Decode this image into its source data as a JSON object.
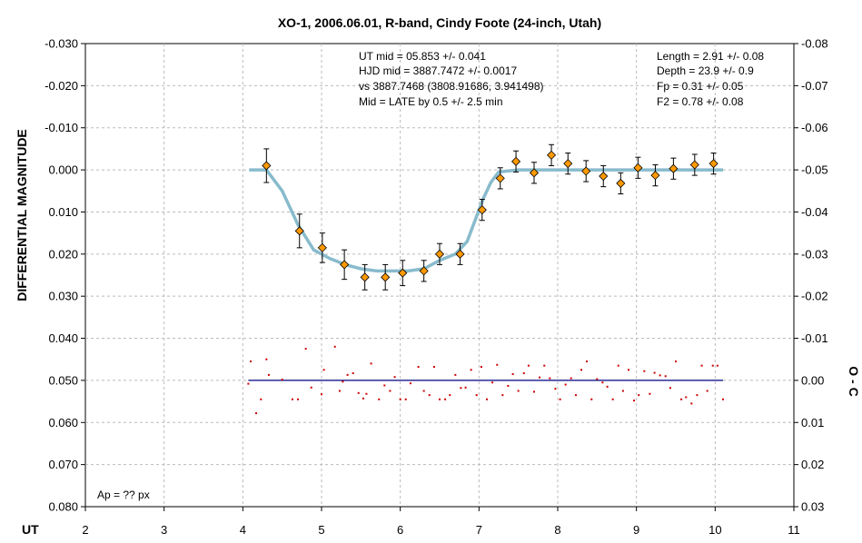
{
  "chart_data": {
    "type": "scatter",
    "title": "XO-1, 2006.06.01, R-band, Cindy Foote (24-inch, Utah)",
    "xlabel": "UT",
    "ylabel": "DIFFERENTIAL MAGNITUDE",
    "y2label": "O - C",
    "xlim": [
      2,
      11
    ],
    "ylim": [
      -0.03,
      0.08
    ],
    "y2lim": [
      -0.08,
      0.03
    ],
    "y_inverted": true,
    "grid": true,
    "x_ticks": [
      "2",
      "3",
      "4",
      "5",
      "6",
      "7",
      "8",
      "9",
      "10",
      "11"
    ],
    "y_ticks": [
      "-0.030",
      "-0.020",
      "-0.010",
      "0.000",
      "0.010",
      "0.020",
      "0.030",
      "0.040",
      "0.050",
      "0.060",
      "0.070",
      "0.080"
    ],
    "y2_ticks": [
      "-0.08",
      "-0.07",
      "-0.06",
      "-0.05",
      "-0.04",
      "-0.03",
      "-0.02",
      "-0.01",
      "0.00",
      "0.01",
      "0.02",
      "0.03"
    ],
    "annotations": {
      "center": [
        "UT mid = 05.853 +/- 0.041",
        "HJD mid = 3887.7472 +/- 0.0017",
        "vs 3887.7468  (3808.91686, 3.941498)",
        "Mid = LATE by 0.5 +/- 2.5 min"
      ],
      "right": [
        "Length = 2.91 +/- 0.08",
        "Depth = 23.9 +/- 0.9",
        "Fp = 0.31 +/- 0.05",
        "F2 = 0.78 +/- 0.08"
      ],
      "corner": "Ap = ?? px"
    },
    "colors": {
      "points": "#ff9900",
      "model": "#88bbcc",
      "residuals": "#cc0000",
      "zero_line": "#000080",
      "grid": "#bbbbbb",
      "errorbars": "#000000"
    },
    "series": [
      {
        "type": "binned-points-with-error",
        "x": [
          4.3,
          4.72,
          5.01,
          5.29,
          5.55,
          5.81,
          6.03,
          6.3,
          6.5,
          6.76,
          7.04,
          7.27,
          7.47,
          7.7,
          7.92,
          8.13,
          8.36,
          8.58,
          8.8,
          9.02,
          9.24,
          9.47,
          9.74,
          9.98
        ],
        "y": [
          -0.001,
          0.0145,
          0.0185,
          0.0225,
          0.0255,
          0.0255,
          0.0245,
          0.024,
          0.02,
          0.02,
          0.0095,
          0.002,
          -0.002,
          0.0007,
          -0.0035,
          -0.0015,
          0.0003,
          0.0015,
          0.0032,
          -0.0005,
          0.0013,
          -0.0003,
          -0.0012,
          -0.0015
        ],
        "err": [
          0.004,
          0.004,
          0.0035,
          0.0035,
          0.003,
          0.003,
          0.003,
          0.0025,
          0.0025,
          0.0025,
          0.0025,
          0.0025,
          0.0025,
          0.0025,
          0.0025,
          0.0025,
          0.0025,
          0.0025,
          0.0025,
          0.0025,
          0.0025,
          0.0025,
          0.0025,
          0.0025
        ]
      },
      {
        "type": "model-line",
        "x": [
          4.08,
          4.3,
          4.5,
          4.7,
          4.9,
          5.1,
          5.3,
          5.5,
          5.7,
          5.9,
          6.1,
          6.3,
          6.5,
          6.7,
          6.85,
          6.95,
          7.05,
          7.15,
          7.25,
          7.5,
          8.0,
          8.5,
          9.0,
          9.5,
          10.1
        ],
        "y": [
          0.0,
          0.0,
          0.005,
          0.013,
          0.019,
          0.021,
          0.0225,
          0.0235,
          0.024,
          0.024,
          0.024,
          0.0235,
          0.0215,
          0.02,
          0.017,
          0.012,
          0.007,
          0.003,
          0.0005,
          0.0,
          0.0,
          0.0,
          0.0,
          0.0,
          0.0
        ]
      },
      {
        "type": "residuals",
        "x": [
          4.07,
          4.1,
          4.17,
          4.23,
          4.3,
          4.33,
          4.5,
          4.63,
          4.7,
          4.8,
          4.87,
          5.0,
          5.03,
          5.17,
          5.23,
          5.27,
          5.33,
          5.4,
          5.47,
          5.53,
          5.57,
          5.63,
          5.73,
          5.8,
          5.87,
          5.93,
          6.0,
          6.07,
          6.13,
          6.23,
          6.3,
          6.37,
          6.43,
          6.5,
          6.57,
          6.63,
          6.7,
          6.77,
          6.83,
          6.9,
          6.97,
          7.03,
          7.1,
          7.17,
          7.23,
          7.3,
          7.37,
          7.43,
          7.5,
          7.57,
          7.63,
          7.7,
          7.77,
          7.83,
          7.9,
          7.97,
          8.03,
          8.1,
          8.17,
          8.23,
          8.3,
          8.37,
          8.43,
          8.5,
          8.57,
          8.63,
          8.7,
          8.77,
          8.83,
          8.9,
          8.97,
          9.03,
          9.1,
          9.17,
          9.23,
          9.3,
          9.37,
          9.43,
          9.5,
          9.57,
          9.63,
          9.7,
          9.77,
          9.83,
          9.9,
          9.97,
          10.03,
          10.1
        ],
        "y": [
          0.0008,
          -0.0045,
          0.0078,
          0.0045,
          -0.005,
          -0.0013,
          -0.0002,
          0.0045,
          0.0045,
          -0.0075,
          0.0017,
          0.0033,
          -0.0025,
          -0.008,
          0.0025,
          0.0003,
          -0.0013,
          -0.0017,
          0.003,
          0.0043,
          0.0032,
          -0.004,
          0.0045,
          0.0012,
          0.0025,
          -0.0008,
          0.0045,
          0.0045,
          0.0007,
          -0.0032,
          0.0025,
          0.0035,
          -0.0032,
          0.0045,
          0.0045,
          0.0035,
          -0.0013,
          0.0018,
          0.0017,
          -0.0025,
          0.0035,
          -0.0032,
          0.0045,
          0.0005,
          -0.0037,
          0.0035,
          0.0013,
          -0.0015,
          0.0025,
          -0.0017,
          -0.0035,
          0.0027,
          -0.0007,
          -0.0035,
          -0.0005,
          0.002,
          0.0045,
          0.001,
          -0.0005,
          0.0035,
          -0.0025,
          -0.0045,
          0.0045,
          -0.0003,
          0.0005,
          0.0015,
          0.0045,
          -0.0035,
          0.0025,
          -0.0025,
          0.0048,
          0.0035,
          -0.0022,
          0.0032,
          -0.0018,
          -0.0012,
          -0.001,
          0.0018,
          -0.0045,
          0.0045,
          0.004,
          0.0055,
          0.0035,
          -0.0035,
          0.0025,
          -0.0035,
          -0.0035,
          0.0045
        ]
      }
    ]
  }
}
